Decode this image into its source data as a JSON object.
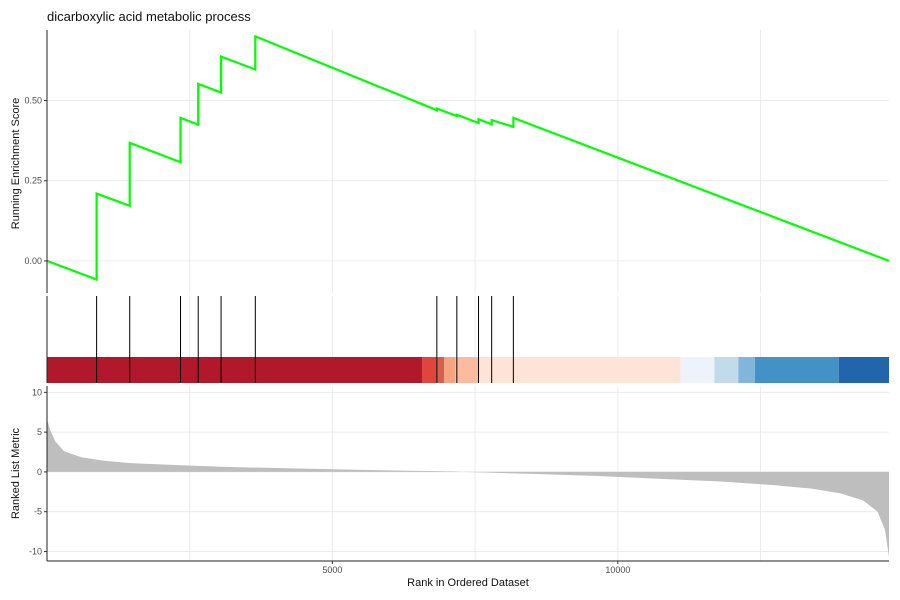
{
  "chart_data": {
    "type": "line",
    "title": "dicarboxylic acid metabolic process",
    "xlabel": "Rank in Ordered Dataset",
    "xlim": [
      1,
      14750
    ],
    "x_ticks": [
      5000,
      10000
    ],
    "x_tick_labels": [
      "5000",
      "10000"
    ],
    "x_minor_grid": [
      2500,
      7500,
      12500
    ],
    "running_enrichment": {
      "ylabel": "Running Enrichment Score",
      "ylim": [
        -0.1,
        0.72
      ],
      "y_ticks": [
        0.0,
        0.25,
        0.5
      ],
      "y_tick_labels": [
        "0.00",
        "0.25",
        "0.50"
      ],
      "line_color": "#00ff00",
      "points": [
        {
          "x": 1,
          "y": 0.0
        },
        {
          "x": 870,
          "y": -0.058
        },
        {
          "x": 870,
          "y": 0.21
        },
        {
          "x": 1450,
          "y": 0.172
        },
        {
          "x": 1450,
          "y": 0.368
        },
        {
          "x": 2340,
          "y": 0.308
        },
        {
          "x": 2340,
          "y": 0.446
        },
        {
          "x": 2650,
          "y": 0.425
        },
        {
          "x": 2650,
          "y": 0.552
        },
        {
          "x": 3050,
          "y": 0.525
        },
        {
          "x": 3050,
          "y": 0.637
        },
        {
          "x": 3650,
          "y": 0.597
        },
        {
          "x": 3650,
          "y": 0.7
        },
        {
          "x": 6830,
          "y": 0.47
        },
        {
          "x": 6830,
          "y": 0.475
        },
        {
          "x": 7180,
          "y": 0.452
        },
        {
          "x": 7180,
          "y": 0.456
        },
        {
          "x": 7560,
          "y": 0.43
        },
        {
          "x": 7560,
          "y": 0.442
        },
        {
          "x": 7790,
          "y": 0.426
        },
        {
          "x": 7790,
          "y": 0.439
        },
        {
          "x": 8170,
          "y": 0.418
        },
        {
          "x": 8170,
          "y": 0.446
        },
        {
          "x": 14750,
          "y": 0.0
        }
      ]
    },
    "hits": [
      870,
      1450,
      2340,
      2650,
      3050,
      3650,
      6830,
      7180,
      7560,
      7790,
      8170
    ],
    "color_band": [
      {
        "from": 1,
        "to": 6570,
        "color": "#b2182b"
      },
      {
        "from": 6570,
        "to": 6820,
        "color": "#e0453d"
      },
      {
        "from": 6820,
        "to": 6960,
        "color": "#d6604d"
      },
      {
        "from": 6960,
        "to": 7150,
        "color": "#f4a582"
      },
      {
        "from": 7150,
        "to": 7550,
        "color": "#fbbba0"
      },
      {
        "from": 7550,
        "to": 11100,
        "color": "#fde3d8"
      },
      {
        "from": 11100,
        "to": 11690,
        "color": "#eef3fb"
      },
      {
        "from": 11690,
        "to": 12110,
        "color": "#c2dbea"
      },
      {
        "from": 12110,
        "to": 12400,
        "color": "#7fb6da"
      },
      {
        "from": 12400,
        "to": 13870,
        "color": "#4292c6"
      },
      {
        "from": 13870,
        "to": 14750,
        "color": "#2166ac"
      }
    ],
    "ranked_metric": {
      "ylabel": "Ranked List Metric",
      "ylim": [
        -11.2,
        10.8
      ],
      "y_ticks": [
        10,
        5,
        0,
        -5,
        -10
      ],
      "y_tick_labels": [
        "10",
        "5",
        "0",
        "-5",
        "-10"
      ],
      "fill_color": "#bebebe",
      "points": [
        {
          "x": 1,
          "y": 6.6
        },
        {
          "x": 60,
          "y": 5.2
        },
        {
          "x": 150,
          "y": 3.8
        },
        {
          "x": 300,
          "y": 2.6
        },
        {
          "x": 600,
          "y": 1.85
        },
        {
          "x": 1000,
          "y": 1.4
        },
        {
          "x": 1500,
          "y": 1.1
        },
        {
          "x": 2300,
          "y": 0.85
        },
        {
          "x": 3200,
          "y": 0.62
        },
        {
          "x": 4200,
          "y": 0.45
        },
        {
          "x": 5200,
          "y": 0.3
        },
        {
          "x": 6200,
          "y": 0.17
        },
        {
          "x": 7100,
          "y": 0.06
        },
        {
          "x": 7300,
          "y": 0.0
        },
        {
          "x": 8500,
          "y": -0.25
        },
        {
          "x": 9600,
          "y": -0.5
        },
        {
          "x": 10700,
          "y": -0.85
        },
        {
          "x": 11800,
          "y": -1.2
        },
        {
          "x": 12700,
          "y": -1.65
        },
        {
          "x": 13400,
          "y": -2.1
        },
        {
          "x": 13900,
          "y": -2.7
        },
        {
          "x": 14300,
          "y": -3.6
        },
        {
          "x": 14550,
          "y": -5.0
        },
        {
          "x": 14680,
          "y": -7.3
        },
        {
          "x": 14750,
          "y": -10.7
        }
      ]
    }
  }
}
